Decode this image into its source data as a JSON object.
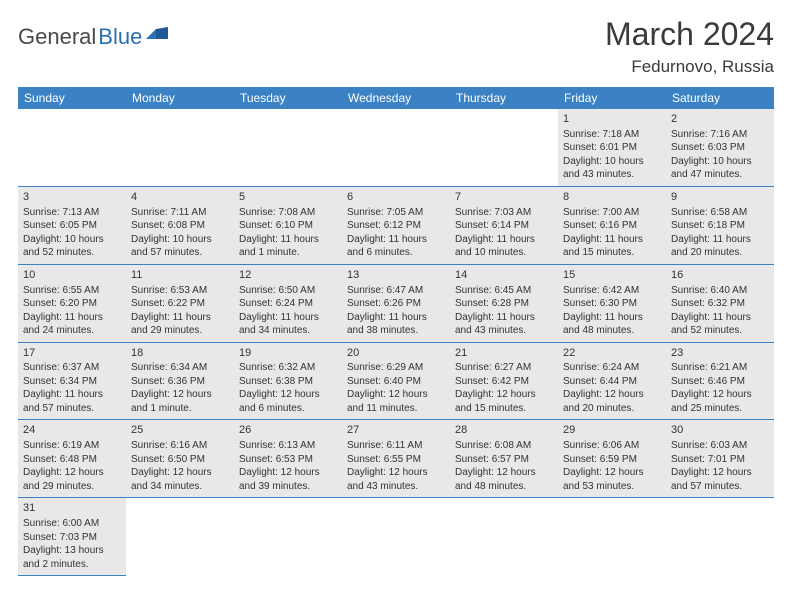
{
  "logo": {
    "part1": "General",
    "part2": "Blue"
  },
  "title": "March 2024",
  "location": "Fedurnovo, Russia",
  "colors": {
    "header_bg": "#3b82c4",
    "header_text": "#ffffff",
    "daynum_bg": "#e8e8e8",
    "border": "#3b82c4",
    "logo_blue": "#2b6fb3",
    "logo_gray": "#4a4a4a",
    "text": "#333333",
    "bg": "#ffffff"
  },
  "day_headers": [
    "Sunday",
    "Monday",
    "Tuesday",
    "Wednesday",
    "Thursday",
    "Friday",
    "Saturday"
  ],
  "weeks": [
    [
      null,
      null,
      null,
      null,
      null,
      {
        "n": "1",
        "sr": "Sunrise: 7:18 AM",
        "ss": "Sunset: 6:01 PM",
        "d1": "Daylight: 10 hours",
        "d2": "and 43 minutes."
      },
      {
        "n": "2",
        "sr": "Sunrise: 7:16 AM",
        "ss": "Sunset: 6:03 PM",
        "d1": "Daylight: 10 hours",
        "d2": "and 47 minutes."
      }
    ],
    [
      {
        "n": "3",
        "sr": "Sunrise: 7:13 AM",
        "ss": "Sunset: 6:05 PM",
        "d1": "Daylight: 10 hours",
        "d2": "and 52 minutes."
      },
      {
        "n": "4",
        "sr": "Sunrise: 7:11 AM",
        "ss": "Sunset: 6:08 PM",
        "d1": "Daylight: 10 hours",
        "d2": "and 57 minutes."
      },
      {
        "n": "5",
        "sr": "Sunrise: 7:08 AM",
        "ss": "Sunset: 6:10 PM",
        "d1": "Daylight: 11 hours",
        "d2": "and 1 minute."
      },
      {
        "n": "6",
        "sr": "Sunrise: 7:05 AM",
        "ss": "Sunset: 6:12 PM",
        "d1": "Daylight: 11 hours",
        "d2": "and 6 minutes."
      },
      {
        "n": "7",
        "sr": "Sunrise: 7:03 AM",
        "ss": "Sunset: 6:14 PM",
        "d1": "Daylight: 11 hours",
        "d2": "and 10 minutes."
      },
      {
        "n": "8",
        "sr": "Sunrise: 7:00 AM",
        "ss": "Sunset: 6:16 PM",
        "d1": "Daylight: 11 hours",
        "d2": "and 15 minutes."
      },
      {
        "n": "9",
        "sr": "Sunrise: 6:58 AM",
        "ss": "Sunset: 6:18 PM",
        "d1": "Daylight: 11 hours",
        "d2": "and 20 minutes."
      }
    ],
    [
      {
        "n": "10",
        "sr": "Sunrise: 6:55 AM",
        "ss": "Sunset: 6:20 PM",
        "d1": "Daylight: 11 hours",
        "d2": "and 24 minutes."
      },
      {
        "n": "11",
        "sr": "Sunrise: 6:53 AM",
        "ss": "Sunset: 6:22 PM",
        "d1": "Daylight: 11 hours",
        "d2": "and 29 minutes."
      },
      {
        "n": "12",
        "sr": "Sunrise: 6:50 AM",
        "ss": "Sunset: 6:24 PM",
        "d1": "Daylight: 11 hours",
        "d2": "and 34 minutes."
      },
      {
        "n": "13",
        "sr": "Sunrise: 6:47 AM",
        "ss": "Sunset: 6:26 PM",
        "d1": "Daylight: 11 hours",
        "d2": "and 38 minutes."
      },
      {
        "n": "14",
        "sr": "Sunrise: 6:45 AM",
        "ss": "Sunset: 6:28 PM",
        "d1": "Daylight: 11 hours",
        "d2": "and 43 minutes."
      },
      {
        "n": "15",
        "sr": "Sunrise: 6:42 AM",
        "ss": "Sunset: 6:30 PM",
        "d1": "Daylight: 11 hours",
        "d2": "and 48 minutes."
      },
      {
        "n": "16",
        "sr": "Sunrise: 6:40 AM",
        "ss": "Sunset: 6:32 PM",
        "d1": "Daylight: 11 hours",
        "d2": "and 52 minutes."
      }
    ],
    [
      {
        "n": "17",
        "sr": "Sunrise: 6:37 AM",
        "ss": "Sunset: 6:34 PM",
        "d1": "Daylight: 11 hours",
        "d2": "and 57 minutes."
      },
      {
        "n": "18",
        "sr": "Sunrise: 6:34 AM",
        "ss": "Sunset: 6:36 PM",
        "d1": "Daylight: 12 hours",
        "d2": "and 1 minute."
      },
      {
        "n": "19",
        "sr": "Sunrise: 6:32 AM",
        "ss": "Sunset: 6:38 PM",
        "d1": "Daylight: 12 hours",
        "d2": "and 6 minutes."
      },
      {
        "n": "20",
        "sr": "Sunrise: 6:29 AM",
        "ss": "Sunset: 6:40 PM",
        "d1": "Daylight: 12 hours",
        "d2": "and 11 minutes."
      },
      {
        "n": "21",
        "sr": "Sunrise: 6:27 AM",
        "ss": "Sunset: 6:42 PM",
        "d1": "Daylight: 12 hours",
        "d2": "and 15 minutes."
      },
      {
        "n": "22",
        "sr": "Sunrise: 6:24 AM",
        "ss": "Sunset: 6:44 PM",
        "d1": "Daylight: 12 hours",
        "d2": "and 20 minutes."
      },
      {
        "n": "23",
        "sr": "Sunrise: 6:21 AM",
        "ss": "Sunset: 6:46 PM",
        "d1": "Daylight: 12 hours",
        "d2": "and 25 minutes."
      }
    ],
    [
      {
        "n": "24",
        "sr": "Sunrise: 6:19 AM",
        "ss": "Sunset: 6:48 PM",
        "d1": "Daylight: 12 hours",
        "d2": "and 29 minutes."
      },
      {
        "n": "25",
        "sr": "Sunrise: 6:16 AM",
        "ss": "Sunset: 6:50 PM",
        "d1": "Daylight: 12 hours",
        "d2": "and 34 minutes."
      },
      {
        "n": "26",
        "sr": "Sunrise: 6:13 AM",
        "ss": "Sunset: 6:53 PM",
        "d1": "Daylight: 12 hours",
        "d2": "and 39 minutes."
      },
      {
        "n": "27",
        "sr": "Sunrise: 6:11 AM",
        "ss": "Sunset: 6:55 PM",
        "d1": "Daylight: 12 hours",
        "d2": "and 43 minutes."
      },
      {
        "n": "28",
        "sr": "Sunrise: 6:08 AM",
        "ss": "Sunset: 6:57 PM",
        "d1": "Daylight: 12 hours",
        "d2": "and 48 minutes."
      },
      {
        "n": "29",
        "sr": "Sunrise: 6:06 AM",
        "ss": "Sunset: 6:59 PM",
        "d1": "Daylight: 12 hours",
        "d2": "and 53 minutes."
      },
      {
        "n": "30",
        "sr": "Sunrise: 6:03 AM",
        "ss": "Sunset: 7:01 PM",
        "d1": "Daylight: 12 hours",
        "d2": "and 57 minutes."
      }
    ],
    [
      {
        "n": "31",
        "sr": "Sunrise: 6:00 AM",
        "ss": "Sunset: 7:03 PM",
        "d1": "Daylight: 13 hours",
        "d2": "and 2 minutes."
      },
      null,
      null,
      null,
      null,
      null,
      null
    ]
  ]
}
